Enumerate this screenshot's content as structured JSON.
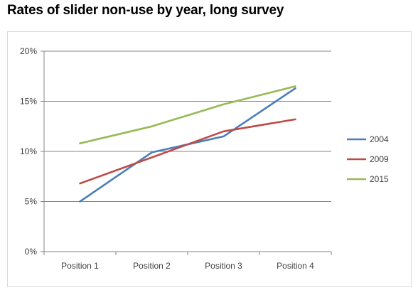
{
  "title": "Rates of slider non-use by year, long survey",
  "chart_data": {
    "type": "line",
    "categories": [
      "Position 1",
      "Position 2",
      "Position 3",
      "Position 4"
    ],
    "series": [
      {
        "name": "2004",
        "color": "#4a7ebb",
        "values": [
          5.0,
          9.9,
          11.5,
          16.3
        ]
      },
      {
        "name": "2009",
        "color": "#be4b48",
        "values": [
          6.8,
          9.4,
          12.0,
          13.2
        ]
      },
      {
        "name": "2015",
        "color": "#98b954",
        "values": [
          10.8,
          12.5,
          14.7,
          16.5
        ]
      }
    ],
    "ylim": [
      0,
      20
    ],
    "yticks": [
      "0%",
      "5%",
      "10%",
      "15%",
      "20%"
    ],
    "ytick_values": [
      0,
      5,
      10,
      15,
      20
    ],
    "grid": "horizontal",
    "legend": "right",
    "title": "",
    "xlabel": "",
    "ylabel": ""
  }
}
